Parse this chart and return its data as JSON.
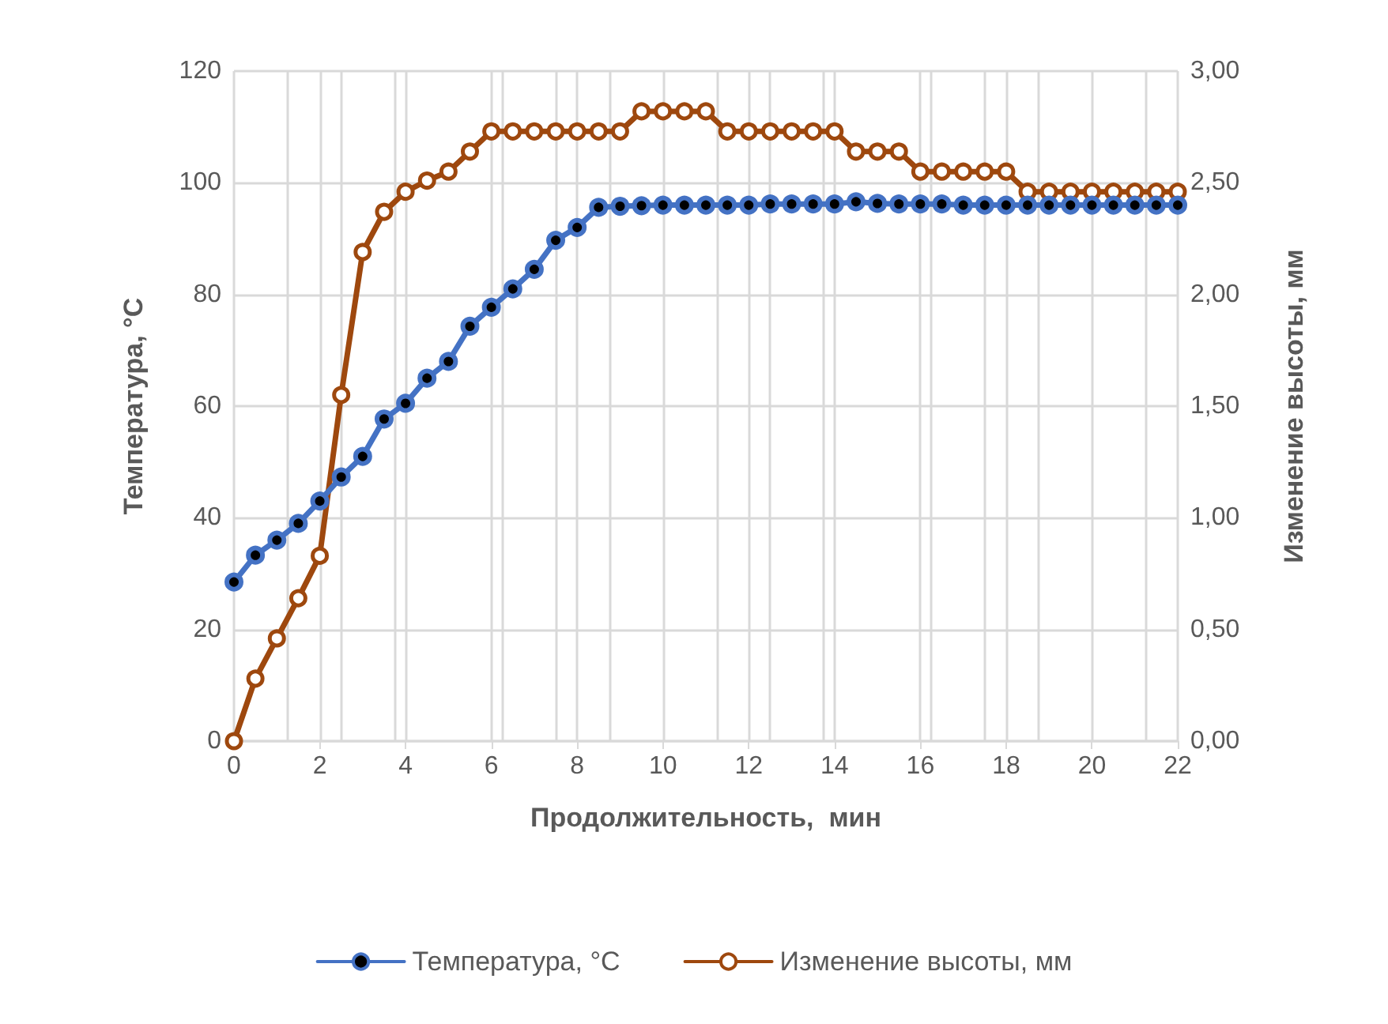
{
  "chart_data": {
    "type": "line",
    "xlabel": "Продолжительность,  мин",
    "ylabel": "Температура, °С",
    "y2label": "Изменение высоты, мм",
    "x": [
      0,
      0.5,
      1,
      1.5,
      2,
      2.5,
      3,
      3.5,
      4,
      4.5,
      5,
      5.5,
      6,
      6.5,
      7,
      7.5,
      8,
      8.5,
      9,
      9.5,
      10,
      10.5,
      11,
      11.5,
      12,
      12.5,
      13,
      13.5,
      14,
      14.5,
      15,
      15.5,
      16,
      16.5,
      17,
      17.5,
      18,
      18.5,
      19,
      19.5,
      20,
      20.5,
      21,
      21.5,
      22
    ],
    "series": [
      {
        "name": "Температура, °С",
        "color": "#4472c4",
        "marker": "circle",
        "values": [
          28.5,
          33.3,
          36,
          39,
          43,
          47.3,
          51,
          57.7,
          60.5,
          65,
          68,
          74.3,
          77.7,
          81,
          84.5,
          89.7,
          92,
          95.6,
          95.8,
          95.9,
          96,
          96,
          96,
          96,
          96,
          96.2,
          96.2,
          96.2,
          96.2,
          96.6,
          96.3,
          96.2,
          96.2,
          96.2,
          96,
          96,
          96,
          96,
          96,
          96,
          96,
          96,
          96,
          96,
          96
        ]
      },
      {
        "name": "Изменение высоты, мм",
        "color": "#9e480e",
        "marker": "circle",
        "axis": "y2",
        "values": [
          0,
          0.28,
          0.46,
          0.64,
          0.83,
          1.55,
          2.19,
          2.37,
          2.46,
          2.51,
          2.55,
          2.64,
          2.73,
          2.73,
          2.73,
          2.73,
          2.73,
          2.73,
          2.73,
          2.82,
          2.82,
          2.82,
          2.82,
          2.73,
          2.73,
          2.73,
          2.73,
          2.73,
          2.73,
          2.64,
          2.64,
          2.64,
          2.55,
          2.55,
          2.55,
          2.55,
          2.55,
          2.46,
          2.46,
          2.46,
          2.46,
          2.46,
          2.46,
          2.46,
          2.46
        ]
      }
    ],
    "xlim": [
      0,
      22
    ],
    "xticks": [
      0,
      2,
      4,
      6,
      8,
      10,
      12,
      14,
      16,
      18,
      20,
      22
    ],
    "ylim": [
      0,
      120
    ],
    "yticks": [
      0,
      20,
      40,
      60,
      80,
      100,
      120
    ],
    "y2lim": [
      0,
      3
    ],
    "y2ticks": [
      {
        "value": 0,
        "label": "0,00"
      },
      {
        "value": 0.5,
        "label": "0,50"
      },
      {
        "value": 1,
        "label": "1,00"
      },
      {
        "value": 1.5,
        "label": "1,50"
      },
      {
        "value": 2,
        "label": "2,00"
      },
      {
        "value": 2.5,
        "label": "2,50"
      },
      {
        "value": 3,
        "label": "3,00"
      }
    ],
    "grid": true,
    "legend": "bottom",
    "line_style": "solid"
  }
}
